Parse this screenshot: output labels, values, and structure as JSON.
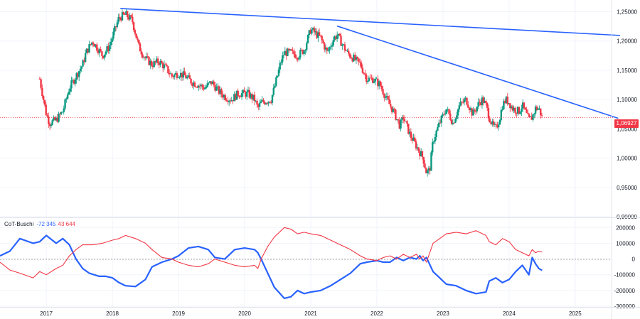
{
  "chart_data": [
    {
      "type": "candlestick",
      "title": "",
      "ylim": [
        0.9,
        1.27
      ],
      "y_ticks": [
        "1,25000",
        "1,20000",
        "1,15000",
        "1,10000",
        "1,05000",
        "1,00000",
        "0,95000",
        "0,90000"
      ],
      "y_tick_values": [
        1.25,
        1.2,
        1.15,
        1.1,
        1.05,
        1.0,
        0.95,
        0.9
      ],
      "last_price": 1.06927,
      "last_price_label": "1,06927",
      "up_color": "#089981",
      "down_color": "#f23645",
      "trendlines": [
        {
          "x1": 2018.12,
          "y1": 1.2555,
          "x2": 2025.68,
          "y2": 1.2095
        },
        {
          "x1": 2021.4,
          "y1": 1.2255,
          "x2": 2025.65,
          "y2": 1.068
        }
      ],
      "trendline_color": "#2962ff",
      "close": [
        [
          2016.9,
          1.135
        ],
        [
          2017.0,
          1.075
        ],
        [
          2017.05,
          1.06
        ],
        [
          2017.15,
          1.065
        ],
        [
          2017.25,
          1.08
        ],
        [
          2017.35,
          1.12
        ],
        [
          2017.45,
          1.14
        ],
        [
          2017.55,
          1.16
        ],
        [
          2017.6,
          1.18
        ],
        [
          2017.7,
          1.2
        ],
        [
          2017.85,
          1.175
        ],
        [
          2017.95,
          1.19
        ],
        [
          2018.1,
          1.24
        ],
        [
          2018.2,
          1.245
        ],
        [
          2018.3,
          1.235
        ],
        [
          2018.4,
          1.19
        ],
        [
          2018.5,
          1.17
        ],
        [
          2018.6,
          1.16
        ],
        [
          2018.7,
          1.165
        ],
        [
          2018.8,
          1.155
        ],
        [
          2018.9,
          1.14
        ],
        [
          2019.0,
          1.145
        ],
        [
          2019.1,
          1.14
        ],
        [
          2019.2,
          1.13
        ],
        [
          2019.3,
          1.125
        ],
        [
          2019.4,
          1.12
        ],
        [
          2019.5,
          1.13
        ],
        [
          2019.6,
          1.115
        ],
        [
          2019.7,
          1.105
        ],
        [
          2019.8,
          1.1
        ],
        [
          2019.9,
          1.11
        ],
        [
          2020.0,
          1.11
        ],
        [
          2020.05,
          1.11
        ],
        [
          2020.15,
          1.1
        ],
        [
          2020.2,
          1.085
        ],
        [
          2020.25,
          1.095
        ],
        [
          2020.4,
          1.1
        ],
        [
          2020.45,
          1.12
        ],
        [
          2020.55,
          1.165
        ],
        [
          2020.6,
          1.18
        ],
        [
          2020.7,
          1.18
        ],
        [
          2020.8,
          1.175
        ],
        [
          2020.9,
          1.185
        ],
        [
          2021.0,
          1.22
        ],
        [
          2021.05,
          1.215
        ],
        [
          2021.15,
          1.205
        ],
        [
          2021.25,
          1.18
        ],
        [
          2021.35,
          1.205
        ],
        [
          2021.4,
          1.21
        ],
        [
          2021.45,
          1.2
        ],
        [
          2021.55,
          1.18
        ],
        [
          2021.65,
          1.17
        ],
        [
          2021.75,
          1.16
        ],
        [
          2021.85,
          1.135
        ],
        [
          2021.95,
          1.135
        ],
        [
          2022.05,
          1.125
        ],
        [
          2022.15,
          1.1
        ],
        [
          2022.25,
          1.08
        ],
        [
          2022.35,
          1.055
        ],
        [
          2022.4,
          1.07
        ],
        [
          2022.5,
          1.04
        ],
        [
          2022.6,
          1.02
        ],
        [
          2022.7,
          1.0
        ],
        [
          2022.75,
          0.975
        ],
        [
          2022.8,
          0.98
        ],
        [
          2022.85,
          1.03
        ],
        [
          2022.95,
          1.06
        ],
        [
          2023.05,
          1.085
        ],
        [
          2023.15,
          1.06
        ],
        [
          2023.25,
          1.09
        ],
        [
          2023.35,
          1.1
        ],
        [
          2023.45,
          1.075
        ],
        [
          2023.55,
          1.095
        ],
        [
          2023.6,
          1.1
        ],
        [
          2023.65,
          1.09
        ],
        [
          2023.7,
          1.07
        ],
        [
          2023.75,
          1.055
        ],
        [
          2023.8,
          1.05
        ],
        [
          2023.85,
          1.065
        ],
        [
          2023.9,
          1.09
        ],
        [
          2023.95,
          1.1
        ],
        [
          2024.0,
          1.095
        ],
        [
          2024.05,
          1.085
        ],
        [
          2024.15,
          1.08
        ],
        [
          2024.2,
          1.09
        ],
        [
          2024.3,
          1.065
        ],
        [
          2024.35,
          1.07
        ],
        [
          2024.4,
          1.085
        ],
        [
          2024.45,
          1.085
        ],
        [
          2024.5,
          1.069
        ]
      ]
    },
    {
      "type": "line",
      "title": "CoT-Buschi",
      "legend": [
        "-72 345",
        "43 644"
      ],
      "ylim": [
        -300000,
        260000
      ],
      "y_ticks": [
        "200000",
        "100000",
        "0",
        "-100000",
        "-200000",
        "-300000"
      ],
      "y_tick_values": [
        200000,
        100000,
        0,
        -100000,
        -200000,
        -300000
      ],
      "x_ticks": [
        "2017",
        "2018",
        "2019",
        "2020",
        "2021",
        "2022",
        "2023",
        "2024",
        "2025"
      ],
      "x_tick_values": [
        2017,
        2018,
        2019,
        2020,
        2021,
        2022,
        2023,
        2024,
        2025
      ],
      "xlim": [
        2016.3,
        2025.55
      ],
      "series": [
        {
          "name": "-72 345",
          "color": "#2962ff",
          "values": [
            [
              2016.3,
              20000
            ],
            [
              2016.45,
              50000
            ],
            [
              2016.6,
              130000
            ],
            [
              2016.8,
              100000
            ],
            [
              2016.9,
              110000
            ],
            [
              2017.0,
              150000
            ],
            [
              2017.15,
              100000
            ],
            [
              2017.25,
              130000
            ],
            [
              2017.35,
              90000
            ],
            [
              2017.45,
              0
            ],
            [
              2017.55,
              -60000
            ],
            [
              2017.65,
              -90000
            ],
            [
              2017.8,
              -110000
            ],
            [
              2017.9,
              -110000
            ],
            [
              2018.0,
              -120000
            ],
            [
              2018.1,
              -150000
            ],
            [
              2018.2,
              -170000
            ],
            [
              2018.35,
              -175000
            ],
            [
              2018.5,
              -130000
            ],
            [
              2018.6,
              -50000
            ],
            [
              2018.75,
              -20000
            ],
            [
              2018.9,
              0
            ],
            [
              2019.0,
              20000
            ],
            [
              2019.15,
              70000
            ],
            [
              2019.3,
              80000
            ],
            [
              2019.45,
              60000
            ],
            [
              2019.55,
              10000
            ],
            [
              2019.7,
              0
            ],
            [
              2019.85,
              60000
            ],
            [
              2020.0,
              70000
            ],
            [
              2020.15,
              60000
            ],
            [
              2020.2,
              40000
            ],
            [
              2020.25,
              0
            ],
            [
              2020.35,
              -90000
            ],
            [
              2020.45,
              -180000
            ],
            [
              2020.6,
              -250000
            ],
            [
              2020.7,
              -240000
            ],
            [
              2020.8,
              -200000
            ],
            [
              2020.9,
              -220000
            ],
            [
              2021.0,
              -210000
            ],
            [
              2021.15,
              -200000
            ],
            [
              2021.3,
              -170000
            ],
            [
              2021.45,
              -130000
            ],
            [
              2021.6,
              -90000
            ],
            [
              2021.75,
              -30000
            ],
            [
              2021.85,
              -20000
            ],
            [
              2022.0,
              -10000
            ],
            [
              2022.1,
              -20000
            ],
            [
              2022.2,
              -20000
            ],
            [
              2022.3,
              10000
            ],
            [
              2022.4,
              -10000
            ],
            [
              2022.5,
              10000
            ],
            [
              2022.6,
              0
            ],
            [
              2022.65,
              20000
            ],
            [
              2022.7,
              -10000
            ],
            [
              2022.75,
              10000
            ],
            [
              2022.85,
              -80000
            ],
            [
              2022.95,
              -120000
            ],
            [
              2023.05,
              -160000
            ],
            [
              2023.2,
              -170000
            ],
            [
              2023.35,
              -200000
            ],
            [
              2023.5,
              -220000
            ],
            [
              2023.65,
              -210000
            ],
            [
              2023.7,
              -140000
            ],
            [
              2023.8,
              -120000
            ],
            [
              2023.9,
              -150000
            ],
            [
              2024.0,
              -130000
            ],
            [
              2024.1,
              -80000
            ],
            [
              2024.2,
              -40000
            ],
            [
              2024.3,
              -100000
            ],
            [
              2024.35,
              10000
            ],
            [
              2024.4,
              -30000
            ],
            [
              2024.45,
              -60000
            ],
            [
              2024.5,
              -72345
            ]
          ]
        },
        {
          "name": "43 644",
          "color": "#f23645",
          "values": [
            [
              2016.3,
              -20000
            ],
            [
              2016.45,
              -70000
            ],
            [
              2016.6,
              -90000
            ],
            [
              2016.8,
              -120000
            ],
            [
              2016.9,
              -80000
            ],
            [
              2017.0,
              -100000
            ],
            [
              2017.15,
              -60000
            ],
            [
              2017.25,
              -40000
            ],
            [
              2017.35,
              20000
            ],
            [
              2017.45,
              60000
            ],
            [
              2017.55,
              90000
            ],
            [
              2017.7,
              90000
            ],
            [
              2017.85,
              100000
            ],
            [
              2018.0,
              120000
            ],
            [
              2018.1,
              130000
            ],
            [
              2018.2,
              150000
            ],
            [
              2018.35,
              130000
            ],
            [
              2018.5,
              100000
            ],
            [
              2018.6,
              60000
            ],
            [
              2018.75,
              10000
            ],
            [
              2018.9,
              0
            ],
            [
              2019.0,
              -20000
            ],
            [
              2019.15,
              -40000
            ],
            [
              2019.3,
              -50000
            ],
            [
              2019.45,
              -30000
            ],
            [
              2019.55,
              0
            ],
            [
              2019.7,
              -20000
            ],
            [
              2019.85,
              -40000
            ],
            [
              2020.0,
              -50000
            ],
            [
              2020.15,
              -40000
            ],
            [
              2020.2,
              -60000
            ],
            [
              2020.25,
              0
            ],
            [
              2020.35,
              80000
            ],
            [
              2020.45,
              140000
            ],
            [
              2020.6,
              200000
            ],
            [
              2020.7,
              190000
            ],
            [
              2020.8,
              160000
            ],
            [
              2020.9,
              170000
            ],
            [
              2021.0,
              160000
            ],
            [
              2021.15,
              150000
            ],
            [
              2021.3,
              120000
            ],
            [
              2021.45,
              90000
            ],
            [
              2021.6,
              60000
            ],
            [
              2021.75,
              20000
            ],
            [
              2021.85,
              0
            ],
            [
              2022.0,
              -10000
            ],
            [
              2022.1,
              10000
            ],
            [
              2022.2,
              20000
            ],
            [
              2022.3,
              0
            ],
            [
              2022.4,
              30000
            ],
            [
              2022.5,
              10000
            ],
            [
              2022.6,
              30000
            ],
            [
              2022.65,
              0
            ],
            [
              2022.7,
              20000
            ],
            [
              2022.75,
              -20000
            ],
            [
              2022.85,
              100000
            ],
            [
              2022.95,
              130000
            ],
            [
              2023.05,
              160000
            ],
            [
              2023.2,
              170000
            ],
            [
              2023.35,
              160000
            ],
            [
              2023.5,
              180000
            ],
            [
              2023.65,
              150000
            ],
            [
              2023.7,
              110000
            ],
            [
              2023.8,
              90000
            ],
            [
              2023.9,
              130000
            ],
            [
              2024.0,
              110000
            ],
            [
              2024.1,
              60000
            ],
            [
              2024.2,
              40000
            ],
            [
              2024.3,
              20000
            ],
            [
              2024.35,
              60000
            ],
            [
              2024.4,
              40000
            ],
            [
              2024.45,
              50000
            ],
            [
              2024.5,
              43644
            ]
          ]
        }
      ]
    }
  ]
}
